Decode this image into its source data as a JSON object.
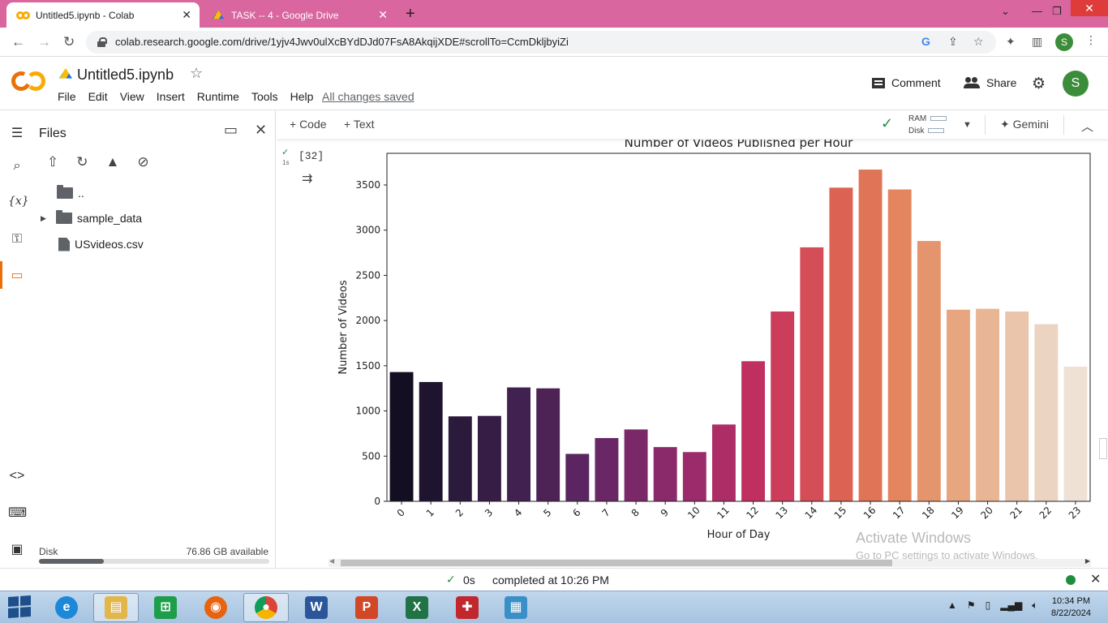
{
  "browser": {
    "tabs": [
      {
        "title": "Untitled5.ipynb - Colab",
        "active": true
      },
      {
        "title": "TASK -- 4 - Google Drive",
        "active": false
      }
    ],
    "url": "colab.research.google.com/drive/1yjv4Jwv0ulXcBYdDJd07FsA8AkqijXDE#scrollTo=CcmDkljbyiZi",
    "profile_initial": "S"
  },
  "colab": {
    "notebook_title": "Untitled5.ipynb",
    "menu": [
      "File",
      "Edit",
      "View",
      "Insert",
      "Runtime",
      "Tools",
      "Help"
    ],
    "save_status": "All changes saved",
    "comment_label": "Comment",
    "share_label": "Share",
    "user_initial": "S"
  },
  "files_panel": {
    "title": "Files",
    "tree": [
      {
        "name": "..",
        "type": "folder"
      },
      {
        "name": "sample_data",
        "type": "folder"
      },
      {
        "name": "USvideos.csv",
        "type": "file"
      }
    ],
    "disk_label": "Disk",
    "disk_available": "76.86 GB available",
    "disk_used_fraction": 0.28
  },
  "toolbar": {
    "code_label": "+ Code",
    "text_label": "+ Text",
    "ram_label": "RAM",
    "disk_label": "Disk",
    "gemini_label": "Gemini"
  },
  "cell": {
    "exec_count": "[32]",
    "exec_time": "1s"
  },
  "chart_data": {
    "type": "bar",
    "title": "Number of Videos Published per Hour",
    "xlabel": "Hour of Day",
    "ylabel": "Number of Videos",
    "categories": [
      "0",
      "1",
      "2",
      "3",
      "4",
      "5",
      "6",
      "7",
      "8",
      "9",
      "10",
      "11",
      "12",
      "13",
      "14",
      "15",
      "16",
      "17",
      "18",
      "19",
      "20",
      "21",
      "22",
      "23"
    ],
    "values": [
      1430,
      1320,
      940,
      945,
      1260,
      1250,
      525,
      700,
      795,
      600,
      545,
      850,
      1550,
      2100,
      2810,
      3470,
      3670,
      3450,
      2880,
      2120,
      2130,
      2100,
      1960,
      1490
    ],
    "colors": [
      "#140e22",
      "#1e1430",
      "#2b1a3c",
      "#351d46",
      "#40214f",
      "#4d2356",
      "#5a2560",
      "#6a2766",
      "#7a2868",
      "#8a2a6a",
      "#9b2b6a",
      "#ad2d67",
      "#bf3061",
      "#cc3d5c",
      "#d44e58",
      "#dc6254",
      "#e07457",
      "#e3855f",
      "#e5956d",
      "#e7a580",
      "#e8b595",
      "#eac5ac",
      "#ecd4c3",
      "#f0e1d5"
    ],
    "yticks": [
      0,
      500,
      1000,
      1500,
      2000,
      2500,
      3000,
      3500
    ],
    "ylim": [
      0,
      3850
    ]
  },
  "status_bar": {
    "duration": "0s",
    "message": "completed at 10:26 PM"
  },
  "watermark": {
    "line1": "Activate Windows",
    "line2": "Go to PC settings to activate Windows."
  },
  "taskbar": {
    "time": "10:34 PM",
    "date": "8/22/2024"
  }
}
